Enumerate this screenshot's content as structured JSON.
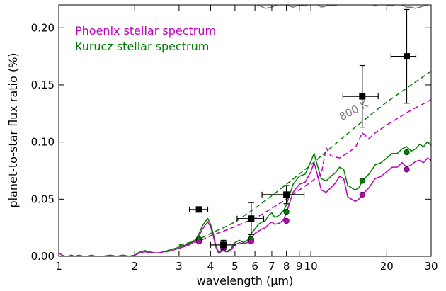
{
  "chart_data": {
    "type": "line",
    "title": "",
    "xlabel": "wavelength (μm)",
    "ylabel": "planet-to-star flux ratio (%)",
    "xscale": "log",
    "xlim": [
      1,
      30
    ],
    "ylim": [
      0,
      0.22
    ],
    "x_ticks": [
      1,
      2,
      3,
      4,
      5,
      6,
      7,
      8,
      9,
      10,
      20,
      30
    ],
    "x_tick_labels": [
      "1",
      "2",
      "3",
      "4",
      "5",
      "6",
      "7",
      "8",
      "9",
      "10",
      "20",
      "30"
    ],
    "y_ticks": [
      0,
      0.05,
      0.1,
      0.15,
      0.2
    ],
    "y_tick_labels": [
      "0.00",
      "0.05",
      "0.10",
      "0.15",
      "0.20"
    ],
    "grid": false,
    "legend_position": "top-left",
    "legend": [
      {
        "label": "Phoenix stellar spectrum",
        "color": "#bf00bf"
      },
      {
        "label": "Kurucz stellar spectrum",
        "color": "#008000"
      }
    ],
    "annotations": [
      {
        "text": "800 K",
        "x": 15.0,
        "y": 0.125,
        "color": "#808080"
      }
    ],
    "series": [
      {
        "name": "Kurucz stellar spectrum",
        "style": "solid",
        "color": "#008000",
        "x": [
          1.0,
          1.03,
          1.06,
          1.09,
          1.12,
          1.16,
          1.2,
          1.25,
          1.3,
          1.35,
          1.4,
          1.5,
          1.6,
          1.7,
          1.8,
          1.9,
          2.0,
          2.1,
          2.2,
          2.3,
          2.4,
          2.5,
          2.6,
          2.7,
          2.8,
          2.9,
          3.0,
          3.1,
          3.2,
          3.3,
          3.4,
          3.5,
          3.6,
          3.7,
          3.8,
          3.9,
          4.0,
          4.1,
          4.2,
          4.3,
          4.4,
          4.5,
          4.6,
          4.7,
          4.8,
          5.0,
          5.2,
          5.4,
          5.6,
          5.8,
          6.0,
          6.2,
          6.4,
          6.6,
          6.8,
          7.0,
          7.2,
          7.5,
          7.8,
          8.0,
          8.5,
          9.0,
          9.5,
          10.0,
          10.3,
          10.6,
          11.0,
          11.5,
          12.0,
          12.5,
          13.0,
          13.5,
          14.0,
          14.5,
          15.0,
          15.5,
          16.0,
          17.0,
          18.0,
          19.0,
          20.0,
          21.0,
          22.0,
          23.0,
          24.0,
          25.0,
          26.0,
          27.0,
          28.0,
          29.0,
          30.0
        ],
        "y": [
          0.003,
          0.001,
          0.0,
          0.0,
          0.001,
          0.0,
          0.001,
          0.0,
          0.0,
          0.001,
          0.0,
          0.0,
          0.001,
          0.0,
          0.001,
          0.0,
          0.001,
          0.004,
          0.005,
          0.004,
          0.003,
          0.003,
          0.004,
          0.005,
          0.006,
          0.007,
          0.008,
          0.009,
          0.01,
          0.011,
          0.013,
          0.015,
          0.02,
          0.026,
          0.03,
          0.033,
          0.028,
          0.02,
          0.009,
          0.004,
          0.005,
          0.006,
          0.004,
          0.005,
          0.006,
          0.012,
          0.014,
          0.012,
          0.014,
          0.02,
          0.024,
          0.028,
          0.03,
          0.031,
          0.036,
          0.038,
          0.034,
          0.036,
          0.04,
          0.045,
          0.063,
          0.07,
          0.072,
          0.083,
          0.09,
          0.08,
          0.068,
          0.066,
          0.07,
          0.073,
          0.078,
          0.076,
          0.062,
          0.06,
          0.058,
          0.06,
          0.066,
          0.072,
          0.08,
          0.082,
          0.086,
          0.09,
          0.09,
          0.094,
          0.096,
          0.092,
          0.094,
          0.098,
          0.096,
          0.1,
          0.097
        ]
      },
      {
        "name": "Phoenix stellar spectrum",
        "style": "solid",
        "color": "#bf00bf",
        "x": [
          1.0,
          1.03,
          1.06,
          1.09,
          1.12,
          1.16,
          1.2,
          1.25,
          1.3,
          1.35,
          1.4,
          1.5,
          1.6,
          1.7,
          1.8,
          1.9,
          2.0,
          2.1,
          2.2,
          2.3,
          2.4,
          2.5,
          2.6,
          2.7,
          2.8,
          2.9,
          3.0,
          3.1,
          3.2,
          3.3,
          3.4,
          3.5,
          3.6,
          3.7,
          3.8,
          3.9,
          4.0,
          4.1,
          4.2,
          4.3,
          4.4,
          4.5,
          4.6,
          4.7,
          4.8,
          5.0,
          5.2,
          5.4,
          5.6,
          5.8,
          6.0,
          6.2,
          6.4,
          6.6,
          6.8,
          7.0,
          7.2,
          7.5,
          7.8,
          8.0,
          8.5,
          9.0,
          9.5,
          10.0,
          10.3,
          10.6,
          11.0,
          11.5,
          12.0,
          12.5,
          13.0,
          13.5,
          14.0,
          14.5,
          15.0,
          15.5,
          16.0,
          17.0,
          18.0,
          19.0,
          20.0,
          21.0,
          22.0,
          23.0,
          24.0,
          25.0,
          26.0,
          27.0,
          28.0,
          29.0,
          30.0
        ],
        "y": [
          0.003,
          0.001,
          0.0,
          0.0,
          0.001,
          0.0,
          0.001,
          0.0,
          0.0,
          0.001,
          0.0,
          0.0,
          0.001,
          0.0,
          0.001,
          0.0,
          0.001,
          0.003,
          0.004,
          0.003,
          0.003,
          0.003,
          0.004,
          0.004,
          0.005,
          0.006,
          0.007,
          0.008,
          0.009,
          0.01,
          0.012,
          0.014,
          0.018,
          0.023,
          0.027,
          0.03,
          0.026,
          0.018,
          0.008,
          0.003,
          0.004,
          0.005,
          0.004,
          0.004,
          0.005,
          0.01,
          0.012,
          0.011,
          0.012,
          0.016,
          0.02,
          0.022,
          0.024,
          0.025,
          0.028,
          0.03,
          0.028,
          0.029,
          0.032,
          0.038,
          0.056,
          0.063,
          0.065,
          0.074,
          0.082,
          0.072,
          0.058,
          0.056,
          0.06,
          0.064,
          0.07,
          0.068,
          0.052,
          0.05,
          0.048,
          0.05,
          0.054,
          0.06,
          0.068,
          0.07,
          0.074,
          0.078,
          0.078,
          0.082,
          0.078,
          0.08,
          0.083,
          0.084,
          0.082,
          0.086,
          0.084
        ]
      },
      {
        "name": "",
        "style": "dashed",
        "color": "#008000",
        "x": [
          3.0,
          3.3,
          3.6,
          4.0,
          4.5,
          5.0,
          6.0,
          7.0,
          8.0,
          9.0,
          10.0,
          12.0,
          15.0,
          18.0,
          20.0,
          25.0,
          30.0
        ],
        "y": [
          0.01,
          0.012,
          0.015,
          0.02,
          0.025,
          0.03,
          0.042,
          0.053,
          0.063,
          0.072,
          0.08,
          0.095,
          0.113,
          0.127,
          0.135,
          0.15,
          0.162
        ]
      },
      {
        "name": "",
        "style": "dashed",
        "color": "#bf00bf",
        "x": [
          3.0,
          3.3,
          3.6,
          4.0,
          4.5,
          5.0,
          5.5,
          6.0,
          7.0,
          8.0,
          9.0,
          10.0,
          11.0,
          11.5,
          12.0,
          13.0,
          15.0,
          16.0,
          17.0,
          18.0,
          20.0,
          25.0,
          30.0
        ],
        "y": [
          0.009,
          0.011,
          0.013,
          0.018,
          0.022,
          0.026,
          0.03,
          0.033,
          0.042,
          0.05,
          0.058,
          0.065,
          0.072,
          0.095,
          0.088,
          0.086,
          0.095,
          0.108,
          0.103,
          0.108,
          0.115,
          0.128,
          0.137
        ]
      },
      {
        "name": "",
        "style": "solid",
        "color": "#808080",
        "x": [
          15.0,
          16.0,
          17.0,
          18.0,
          19.0,
          20.0,
          21.0,
          22.0,
          23.0,
          24.0,
          25.0,
          26.0,
          27.0,
          28.0,
          29.0,
          30.0
        ],
        "y": [
          0.222,
          0.221,
          0.222,
          0.219,
          0.222,
          0.22,
          0.219,
          0.222,
          0.22,
          0.218,
          0.218,
          0.217,
          0.218,
          0.219,
          0.22,
          0.221
        ]
      },
      {
        "name": "",
        "style": "solid",
        "color": "#808080",
        "x": [
          6.0,
          6.3,
          6.6,
          7.0,
          7.5,
          8.0,
          8.5,
          9.0,
          9.5,
          10.0,
          10.5,
          11.0,
          11.5,
          12.0,
          12.5,
          13.0
        ],
        "y": [
          0.222,
          0.219,
          0.217,
          0.218,
          0.221,
          0.22,
          0.218,
          0.22,
          0.219,
          0.222,
          0.221,
          0.218,
          0.219,
          0.22,
          0.219,
          0.222
        ]
      }
    ],
    "observations": {
      "name": "",
      "color": "#000000",
      "marker": "square",
      "points": [
        {
          "x": 3.6,
          "y": 0.041,
          "xerr": [
            3.3,
            3.9
          ],
          "yerr": [
            0.039,
            0.043
          ]
        },
        {
          "x": 4.5,
          "y": 0.01,
          "xerr": [
            4.0,
            5.05
          ],
          "yerr": [
            0.006,
            0.014
          ]
        },
        {
          "x": 5.8,
          "y": 0.033,
          "xerr": [
            5.1,
            6.5
          ],
          "yerr": [
            0.019,
            0.047
          ]
        },
        {
          "x": 8.0,
          "y": 0.054,
          "xerr": [
            6.4,
            9.4
          ],
          "yerr": [
            0.046,
            0.062
          ]
        },
        {
          "x": 16.0,
          "y": 0.14,
          "xerr": [
            13.4,
            18.5
          ],
          "yerr": [
            0.113,
            0.167
          ]
        },
        {
          "x": 24.0,
          "y": 0.175,
          "xerr": [
            20.8,
            26.1
          ],
          "yerr": [
            0.134,
            0.216
          ]
        }
      ]
    },
    "band_points": [
      {
        "series": "Kurucz stellar spectrum",
        "color": "#008000",
        "x": [
          3.6,
          4.5,
          5.8,
          8.0,
          16.0,
          24.0
        ],
        "y": [
          0.015,
          0.009,
          0.015,
          0.039,
          0.066,
          0.091
        ]
      },
      {
        "series": "Phoenix stellar spectrum",
        "color": "#bf00bf",
        "x": [
          3.6,
          4.5,
          5.8,
          8.0,
          16.0,
          24.0
        ],
        "y": [
          0.013,
          0.007,
          0.013,
          0.031,
          0.054,
          0.076
        ]
      }
    ]
  }
}
